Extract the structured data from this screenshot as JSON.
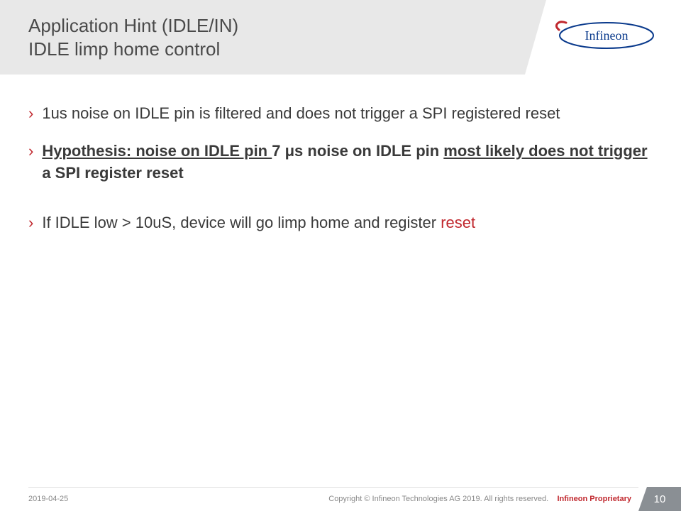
{
  "header": {
    "title_line1": "Application Hint (IDLE/IN)",
    "title_line2": "IDLE limp home control",
    "logo_text": "Infineon",
    "title_color": "#4a4a4a",
    "bg_color": "#e8e8e8",
    "brand_color": "#0a3a8c"
  },
  "bullets": [
    {
      "parts": [
        {
          "text": "1us noise on IDLE pin is filtered and does not trigger a SPI registered reset",
          "style": ""
        }
      ]
    },
    {
      "parts": [
        {
          "text": "Hypothesis: noise on IDLE pin ",
          "style": "bu"
        },
        {
          "text": "7 μs noise on IDLE pin ",
          "style": "b"
        },
        {
          "text": "most likely does not trigger",
          "style": "bu"
        },
        {
          "text": " a SPI register reset",
          "style": "b"
        }
      ]
    },
    {
      "spacer": true,
      "parts": [
        {
          "text": "If IDLE low > 10uS, device will go limp home and register ",
          "style": ""
        },
        {
          "text": "reset",
          "style": "red"
        }
      ]
    }
  ],
  "footer": {
    "date": "2019-04-25",
    "copyright": "Copyright © Infineon Technologies AG 2019. All rights reserved.",
    "proprietary": "Infineon Proprietary",
    "page_number": "10",
    "badge_bg": "#8a8f94"
  },
  "colors": {
    "accent_red": "#c0272d",
    "text": "#3a3a3a",
    "muted": "#888888"
  }
}
